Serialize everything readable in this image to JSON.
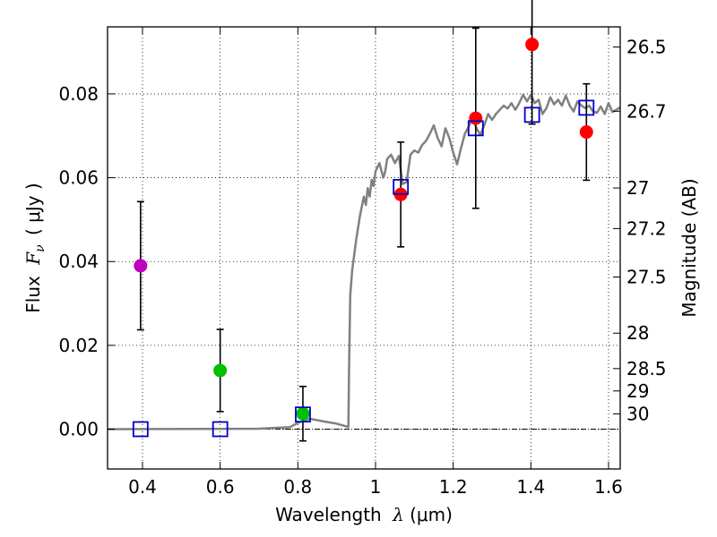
{
  "chart_data": {
    "type": "scatter",
    "xlabel": {
      "text": "Wavelength",
      "symbol": "λ",
      "unit": "(μm)"
    },
    "ylabel": {
      "text": "Flux",
      "symbol": "F",
      "subscript": "ν",
      "unit": "( μJy )"
    },
    "y2label": "Magnitude (AB)",
    "xlim": [
      0.31,
      1.63
    ],
    "ylim": [
      -0.0095,
      0.096
    ],
    "grid": true,
    "x_ticks": [
      {
        "value": 0.4,
        "label": "0.4"
      },
      {
        "value": 0.6,
        "label": "0.6"
      },
      {
        "value": 0.8,
        "label": "0.8"
      },
      {
        "value": 1.0,
        "label": "1"
      },
      {
        "value": 1.2,
        "label": "1.2"
      },
      {
        "value": 1.4,
        "label": "1.4"
      },
      {
        "value": 1.6,
        "label": "1.6"
      }
    ],
    "y_ticks": [
      {
        "value": 0.0,
        "label": "0.00"
      },
      {
        "value": 0.02,
        "label": "0.02"
      },
      {
        "value": 0.04,
        "label": "0.04"
      },
      {
        "value": 0.06,
        "label": "0.06"
      },
      {
        "value": 0.08,
        "label": "0.08"
      }
    ],
    "mag_ticks": [
      {
        "mag": 26.5,
        "label": "26.5"
      },
      {
        "mag": 26.7,
        "label": "26.7"
      },
      {
        "mag": 27.0,
        "label": "27"
      },
      {
        "mag": 27.2,
        "label": "27.2"
      },
      {
        "mag": 27.5,
        "label": "27.5"
      },
      {
        "mag": 28.0,
        "label": "28"
      },
      {
        "mag": 28.5,
        "label": "28.5"
      },
      {
        "mag": 29.0,
        "label": "29"
      },
      {
        "mag": 30.0,
        "label": "30"
      }
    ],
    "observed": [
      {
        "x": 0.395,
        "y": 0.039,
        "err": 0.0153,
        "color": "#bf00bf"
      },
      {
        "x": 0.6,
        "y": 0.014,
        "err": 0.0098,
        "color": "#00c000"
      },
      {
        "x": 0.813,
        "y": 0.0037,
        "err": 0.0065,
        "color": "#00c000"
      },
      {
        "x": 1.065,
        "y": 0.056,
        "err": 0.0125,
        "color": "#ff0000"
      },
      {
        "x": 1.258,
        "y": 0.0742,
        "err": 0.0215,
        "color": "#ff0000"
      },
      {
        "x": 1.403,
        "y": 0.0918,
        "err": 0.019,
        "color": "#ff0000"
      },
      {
        "x": 1.543,
        "y": 0.0709,
        "err": 0.0115,
        "color": "#ff0000"
      }
    ],
    "model_photometry": {
      "color": "#0000cc",
      "points": [
        {
          "x": 0.395,
          "y": 0.0
        },
        {
          "x": 0.6,
          "y": 0.0
        },
        {
          "x": 0.813,
          "y": 0.0035
        },
        {
          "x": 1.065,
          "y": 0.0578
        },
        {
          "x": 1.258,
          "y": 0.0718
        },
        {
          "x": 1.403,
          "y": 0.075
        },
        {
          "x": 1.543,
          "y": 0.0767
        }
      ]
    },
    "model_spectrum": {
      "color": "#808080",
      "x": [
        0.31,
        0.7,
        0.74,
        0.78,
        0.8,
        0.83,
        0.87,
        0.9,
        0.92,
        0.93,
        0.932,
        0.935,
        0.94,
        0.95,
        0.96,
        0.97,
        0.975,
        0.98,
        0.985,
        0.99,
        0.995,
        1.0,
        1.01,
        1.02,
        1.025,
        1.03,
        1.04,
        1.05,
        1.06,
        1.07,
        1.08,
        1.09,
        1.1,
        1.11,
        1.12,
        1.13,
        1.14,
        1.15,
        1.16,
        1.17,
        1.18,
        1.19,
        1.2,
        1.21,
        1.22,
        1.23,
        1.24,
        1.25,
        1.26,
        1.27,
        1.28,
        1.29,
        1.3,
        1.31,
        1.32,
        1.33,
        1.34,
        1.35,
        1.36,
        1.37,
        1.38,
        1.39,
        1.4,
        1.41,
        1.42,
        1.43,
        1.44,
        1.45,
        1.46,
        1.47,
        1.48,
        1.49,
        1.5,
        1.51,
        1.52,
        1.53,
        1.54,
        1.55,
        1.56,
        1.57,
        1.58,
        1.59,
        1.6,
        1.61,
        1.62,
        1.63
      ],
      "y": [
        0.0,
        0.0001,
        0.0003,
        0.0005,
        0.0015,
        0.0025,
        0.0018,
        0.0013,
        0.0008,
        0.0005,
        0.015,
        0.032,
        0.038,
        0.045,
        0.051,
        0.0555,
        0.0535,
        0.0575,
        0.0555,
        0.0595,
        0.058,
        0.0615,
        0.0635,
        0.06,
        0.0615,
        0.0645,
        0.0655,
        0.0635,
        0.0652,
        0.0585,
        0.059,
        0.0655,
        0.0665,
        0.066,
        0.0678,
        0.0688,
        0.0705,
        0.0725,
        0.0695,
        0.0675,
        0.0718,
        0.0695,
        0.066,
        0.0632,
        0.067,
        0.0705,
        0.0722,
        0.0742,
        0.0718,
        0.0702,
        0.0725,
        0.0752,
        0.0738,
        0.0752,
        0.0762,
        0.0772,
        0.0765,
        0.0778,
        0.0762,
        0.0778,
        0.0798,
        0.0782,
        0.0798,
        0.0778,
        0.0786,
        0.0752,
        0.0766,
        0.0792,
        0.0775,
        0.0786,
        0.0772,
        0.0796,
        0.0772,
        0.0758,
        0.0782,
        0.0772,
        0.0766,
        0.0772,
        0.0758,
        0.0755,
        0.077,
        0.0752,
        0.0778,
        0.0757,
        0.0762,
        0.0768
      ]
    }
  }
}
